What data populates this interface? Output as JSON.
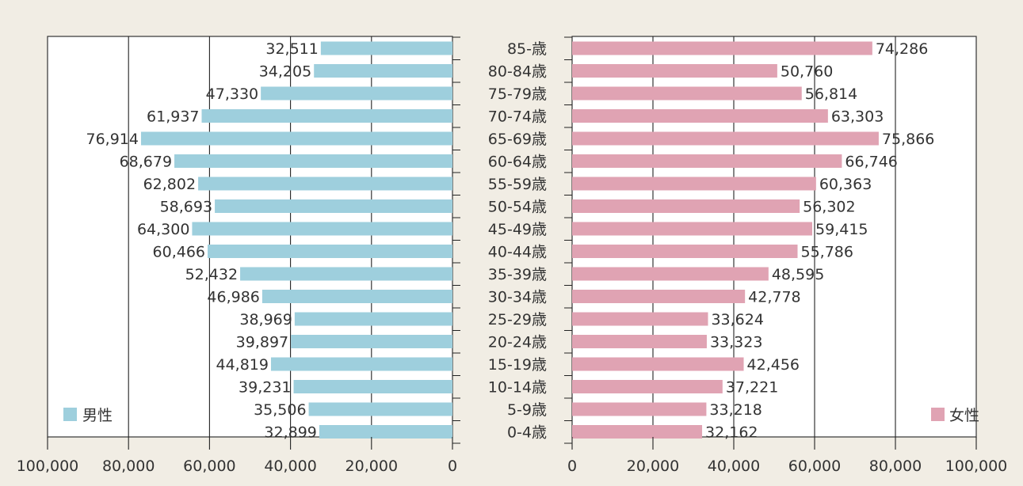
{
  "chart_data": {
    "type": "bar",
    "orientation": "horizontal",
    "layout": "population-pyramid",
    "categories": [
      "85-歳",
      "80-84歳",
      "75-79歳",
      "70-74歳",
      "65-69歳",
      "60-64歳",
      "55-59歳",
      "50-54歳",
      "45-49歳",
      "40-44歳",
      "35-39歳",
      "30-34歳",
      "25-29歳",
      "20-24歳",
      "15-19歳",
      "10-14歳",
      "5-9歳",
      "0-4歳"
    ],
    "series": [
      {
        "name": "男性",
        "values": [
          32511,
          34205,
          47330,
          61937,
          76914,
          68679,
          62802,
          58693,
          64300,
          60466,
          52432,
          46986,
          38969,
          39897,
          44819,
          39231,
          35506,
          32899
        ],
        "labels": [
          "32,511",
          "34,205",
          "47,330",
          "61,937",
          "76,914",
          "68,679",
          "62,802",
          "58,693",
          "64,300",
          "60,466",
          "52,432",
          "46,986",
          "38,969",
          "39,897",
          "44,819",
          "39,231",
          "35,506",
          "32,899"
        ],
        "color": "#9ecfdd"
      },
      {
        "name": "女性",
        "values": [
          74286,
          50760,
          56814,
          63303,
          75866,
          66746,
          60363,
          56302,
          59415,
          55786,
          48595,
          42778,
          33624,
          33323,
          42456,
          37221,
          33218,
          32162
        ],
        "labels": [
          "74,286",
          "50,760",
          "56,814",
          "63,303",
          "75,866",
          "66,746",
          "60,363",
          "56,302",
          "59,415",
          "55,786",
          "48,595",
          "42,778",
          "33,624",
          "33,323",
          "42,456",
          "37,221",
          "33,218",
          "32,162"
        ],
        "color": "#e0a3b3"
      }
    ],
    "x_ticks_left": [
      "100,000",
      "80,000",
      "60,000",
      "40,000",
      "20,000",
      "0"
    ],
    "x_ticks_right": [
      "0",
      "20,000",
      "40,000",
      "60,000",
      "80,000",
      "100,000"
    ],
    "xlim": [
      0,
      100000
    ],
    "grid": true,
    "legend": [
      "bottom-left",
      "bottom-right"
    ]
  }
}
